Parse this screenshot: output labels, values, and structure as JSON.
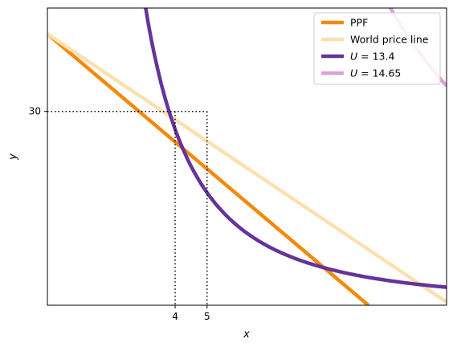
{
  "chart_data": {
    "type": "line",
    "xlabel": "x",
    "ylabel": "y",
    "xlim": [
      0,
      12.5
    ],
    "ylim": [
      0,
      46
    ],
    "x_ticks": [
      {
        "value": 4,
        "label": "4"
      },
      {
        "value": 5,
        "label": "5"
      }
    ],
    "y_ticks": [
      {
        "value": 30,
        "label": "30"
      }
    ],
    "grid": false,
    "legend_position": "top-right",
    "series": [
      {
        "name": "PPF",
        "kind": "line",
        "color": "#f28a0d",
        "x": [
          0,
          10.05
        ],
        "y": [
          42,
          0
        ]
      },
      {
        "name": "World price line",
        "kind": "line",
        "color": "#fde0b0",
        "x": [
          0,
          12.5
        ],
        "y": [
          42,
          0.5
        ]
      },
      {
        "name": "U = 13.4",
        "kind": "indifference",
        "level": 13.4,
        "color": "#663399"
      },
      {
        "name": "U = 14.65",
        "kind": "indifference",
        "level": 14.65,
        "color": "#dda0dd"
      }
    ],
    "reference_lines": [
      {
        "x": 4,
        "y": 30,
        "style": "dotted"
      },
      {
        "x": 5,
        "y": 30,
        "style": "dotted"
      }
    ],
    "legend": [
      {
        "label": "PPF",
        "math": false
      },
      {
        "label": "World price line",
        "math": false
      },
      {
        "label_var": "U",
        "label_rest": " = 13.4",
        "math": true
      },
      {
        "label_var": "U",
        "label_rest": " = 14.65",
        "math": true
      }
    ]
  }
}
